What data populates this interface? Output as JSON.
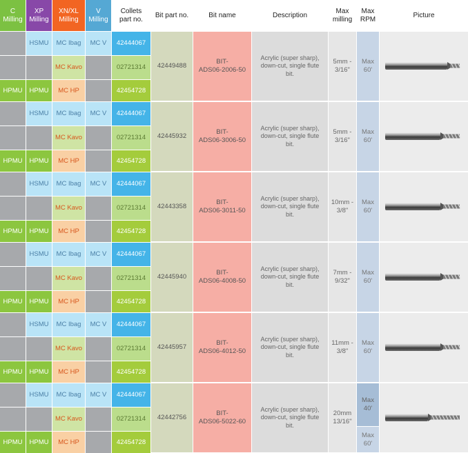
{
  "headers": {
    "c_milling": "C\nMilling",
    "xp_milling": "XP\nMilling",
    "xn_xl_milling": "XN/XL\nMilling",
    "v_milling": "V\nMilling",
    "collets_part_no": "Collets\npart no.",
    "bit_part_no": "Bit part no.",
    "bit_name": "Bit name",
    "description": "Description",
    "max_milling": "Max\nmilling",
    "max_rpm": "Max\nRPM",
    "picture": "Picture"
  },
  "colors": {
    "c_header": "#7cc142",
    "xp_header": "#8848a8",
    "xn_header": "#f26522",
    "v_header": "#55a8d4"
  },
  "groups": [
    {
      "bit_part_no": "42449488",
      "bit_name": "BIT-\nADS06-2006-50",
      "description": "Acrylic (super sharp),\ndown-cut, single flute\nbit.",
      "max_milling": "5mm -\n3/16\"",
      "max_rpm": [
        "Max\n60'"
      ],
      "rows": [
        {
          "c": "",
          "xp": "HSMU",
          "xn": "MC Ibag",
          "v": "MC V",
          "collet": "42444067"
        },
        {
          "c": "",
          "xp": "",
          "xn": "MC Kavo",
          "v": "",
          "collet": "02721314"
        },
        {
          "c": "HPMU",
          "xp": "HPMU",
          "xn": "MC HP",
          "v": "",
          "collet": "42454728"
        }
      ],
      "bit_image": "router-bit-short-icon"
    },
    {
      "bit_part_no": "42445932",
      "bit_name": "BIT-\nADS06-3006-50",
      "description": "Acrylic (super sharp),\ndown-cut, single flute\nbit.",
      "max_milling": "5mm -\n3/16\"",
      "max_rpm": [
        "Max\n60'"
      ],
      "rows": [
        {
          "c": "",
          "xp": "HSMU",
          "xn": "MC Ibag",
          "v": "MC V",
          "collet": "42444067"
        },
        {
          "c": "",
          "xp": "",
          "xn": "MC Kavo",
          "v": "",
          "collet": "02721314"
        },
        {
          "c": "HPMU",
          "xp": "HPMU",
          "xn": "MC HP",
          "v": "",
          "collet": "42454728"
        }
      ],
      "bit_image": "router-bit-medium-icon"
    },
    {
      "bit_part_no": "42443358",
      "bit_name": "BIT-\nADS06-3011-50",
      "description": "Acrylic (super sharp),\ndown-cut, single flute\nbit.",
      "max_milling": "10mm -\n3/8\"",
      "max_rpm": [
        "Max\n60'"
      ],
      "rows": [
        {
          "c": "",
          "xp": "HSMU",
          "xn": "MC Ibag",
          "v": "MC V",
          "collet": "42444067"
        },
        {
          "c": "",
          "xp": "",
          "xn": "MC Kavo",
          "v": "",
          "collet": "02721314"
        },
        {
          "c": "HPMU",
          "xp": "HPMU",
          "xn": "MC HP",
          "v": "",
          "collet": "42454728"
        }
      ],
      "bit_image": "router-bit-medium-icon"
    },
    {
      "bit_part_no": "42445940",
      "bit_name": "BIT-\nADS06-4008-50",
      "description": "Acrylic (super sharp),\ndown-cut, single flute\nbit.",
      "max_milling": "7mm -\n9/32\"",
      "max_rpm": [
        "Max\n60'"
      ],
      "rows": [
        {
          "c": "",
          "xp": "HSMU",
          "xn": "MC Ibag",
          "v": "MC V",
          "collet": "42444067"
        },
        {
          "c": "",
          "xp": "",
          "xn": "MC Kavo",
          "v": "",
          "collet": "02721314"
        },
        {
          "c": "HPMU",
          "xp": "HPMU",
          "xn": "MC HP",
          "v": "",
          "collet": "42454728"
        }
      ],
      "bit_image": "router-bit-medium-icon"
    },
    {
      "bit_part_no": "42445957",
      "bit_name": "BIT-\nADS06-4012-50",
      "description": "Acrylic (super sharp),\ndown-cut, single flute\nbit.",
      "max_milling": "11mm -\n3/8\"",
      "max_rpm": [
        "Max\n60'"
      ],
      "rows": [
        {
          "c": "",
          "xp": "HSMU",
          "xn": "MC Ibag",
          "v": "MC V",
          "collet": "42444067"
        },
        {
          "c": "",
          "xp": "",
          "xn": "MC Kavo",
          "v": "",
          "collet": "02721314"
        },
        {
          "c": "HPMU",
          "xp": "HPMU",
          "xn": "MC HP",
          "v": "",
          "collet": "42454728"
        }
      ],
      "bit_image": "router-bit-medium-icon"
    },
    {
      "bit_part_no": "42442756",
      "bit_name": "BIT-\nADS06-5022-60",
      "description": "Acrylic (super sharp),\ndown-cut, single flute\nbit.",
      "max_milling": "20mm\n13/16\"",
      "max_rpm": [
        "Max\n40'",
        "Max\n60'"
      ],
      "rows": [
        {
          "c": "",
          "xp": "HSMU",
          "xn": "MC Ibag",
          "v": "MC V",
          "collet": "42444067"
        },
        {
          "c": "",
          "xp": "",
          "xn": "MC Kavo",
          "v": "",
          "collet": "02721314"
        },
        {
          "c": "HPMU",
          "xp": "HPMU",
          "xn": "MC HP",
          "v": "",
          "collet": "42454728"
        }
      ],
      "bit_image": "router-bit-long-icon"
    }
  ]
}
